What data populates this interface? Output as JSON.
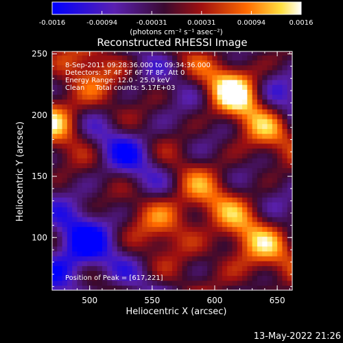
{
  "chart_data": {
    "type": "heatmap",
    "title": "Reconstructed RHESSI Image",
    "xlabel": "Heliocentric X (arcsec)",
    "ylabel": "Heliocentric Y (arcsec)",
    "xlim": [
      470,
      662
    ],
    "ylim": [
      57,
      252
    ],
    "x_ticks": [
      500,
      550,
      600,
      650
    ],
    "y_ticks": [
      100,
      150,
      200,
      250
    ],
    "colorbar": {
      "ticks": [
        "-0.0016",
        "-0.00094",
        "-0.00031",
        "0.00031",
        "0.00094",
        "0.0016"
      ],
      "units": "(photons cm⁻² s⁻¹ asec⁻²)",
      "range": [
        -0.0016,
        0.0016
      ]
    },
    "annotations": [
      "8-Sep-2011 09:28:36.000 to 09:34:36.000",
      "Detectors: 3F 4F 5F 6F 7F 8F, Att 0",
      "Energy Range: 12.0 - 25.0 keV",
      "Clean     Total counts: 5.17E+03"
    ],
    "peak_label": "Position of Peak = [617,221]",
    "peak": [
      617,
      221
    ],
    "sources": [
      {
        "x": 617,
        "y": 221,
        "amp": 1.0
      },
      {
        "x": 473,
        "y": 200,
        "amp": 0.75
      },
      {
        "x": 640,
        "y": 185,
        "amp": 0.55
      },
      {
        "x": 590,
        "y": 130,
        "amp": 0.5
      },
      {
        "x": 620,
        "y": 100,
        "amp": 0.55
      },
      {
        "x": 560,
        "y": 115,
        "amp": 0.5
      },
      {
        "x": 500,
        "y": 240,
        "amp": 0.45
      },
      {
        "x": 640,
        "y": 80,
        "amp": 0.45
      },
      {
        "x": 480,
        "y": 75,
        "amp": -0.6
      },
      {
        "x": 495,
        "y": 100,
        "amp": -0.55
      },
      {
        "x": 530,
        "y": 170,
        "amp": -0.4
      },
      {
        "x": 650,
        "y": 215,
        "amp": -0.35
      }
    ]
  },
  "footer": {
    "timestamp": "13-May-2022 21:26"
  }
}
